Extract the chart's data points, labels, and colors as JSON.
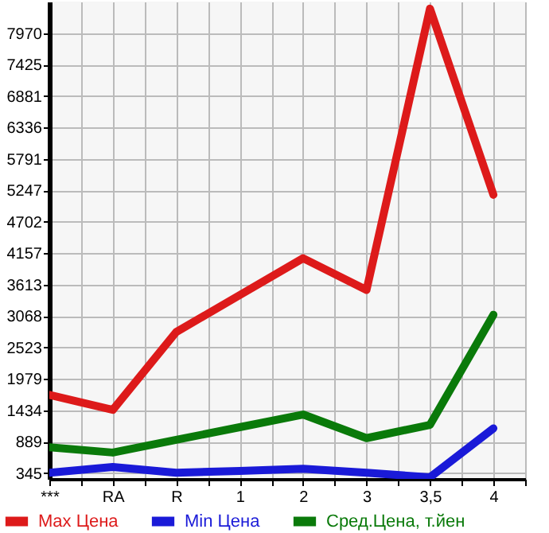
{
  "chart_data": {
    "type": "line",
    "categories": [
      "***",
      "RA",
      "R",
      "1",
      "2",
      "3",
      "3,5",
      "4"
    ],
    "series": [
      {
        "name": "Max Цена",
        "color": "#dd1a1a",
        "values": [
          1700,
          1440,
          2790,
          3430,
          4070,
          3520,
          8400,
          5170
        ]
      },
      {
        "name": "Min Цена",
        "color": "#1a1ad8",
        "values": [
          350,
          450,
          350,
          380,
          420,
          350,
          270,
          1120
        ]
      },
      {
        "name": "Сред.Цена, т.йен",
        "color": "#0a7a0a",
        "values": [
          790,
          700,
          920,
          1140,
          1360,
          950,
          1180,
          3090
        ]
      }
    ],
    "ylim": [
      243,
      8521
    ],
    "yticks": [
      345,
      889,
      1434,
      1979,
      2523,
      3068,
      3613,
      4157,
      4702,
      5247,
      5791,
      6336,
      6881,
      7425,
      7970
    ],
    "grid": true,
    "legend": "bottom",
    "marker": "none",
    "line_style": "solid"
  }
}
